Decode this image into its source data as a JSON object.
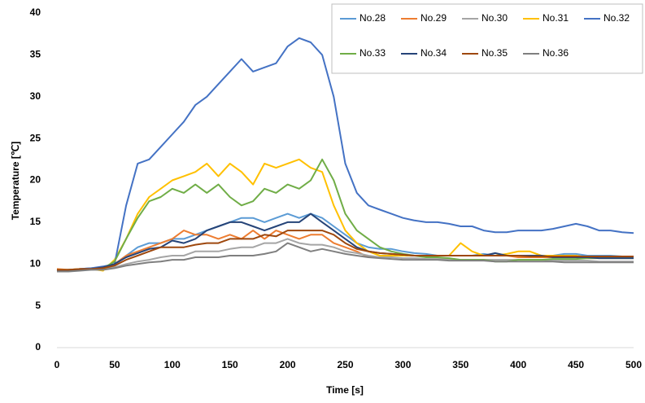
{
  "chart_data": {
    "type": "line",
    "x_label": "Time [s]",
    "y_label": "Temperature [℃]",
    "x": [
      0,
      10,
      20,
      30,
      40,
      50,
      60,
      70,
      80,
      90,
      100,
      110,
      120,
      130,
      140,
      150,
      160,
      170,
      180,
      190,
      200,
      210,
      220,
      230,
      240,
      250,
      260,
      270,
      280,
      290,
      300,
      310,
      320,
      330,
      340,
      350,
      360,
      370,
      380,
      390,
      400,
      410,
      420,
      430,
      440,
      450,
      460,
      470,
      480,
      490,
      500
    ],
    "xlim": [
      0,
      500
    ],
    "xticks": [
      0,
      50,
      100,
      150,
      200,
      250,
      300,
      350,
      400,
      450,
      500
    ],
    "ylim": [
      0,
      40
    ],
    "yticks": [
      0,
      5,
      10,
      15,
      20,
      25,
      30,
      35,
      40
    ],
    "grid": false,
    "legend": "top-right",
    "series": [
      {
        "name": "No.28",
        "color": "#5b9bd5",
        "values": [
          9.3,
          9.3,
          9.4,
          9.5,
          9.6,
          10,
          11,
          12,
          12.5,
          12.5,
          13,
          13,
          13.5,
          14,
          14.5,
          15,
          15.5,
          15.5,
          15,
          15.5,
          16,
          15.5,
          16,
          15.5,
          14.5,
          13.5,
          12.5,
          12,
          11.8,
          11.8,
          11.5,
          11.3,
          11.2,
          11,
          11,
          11,
          11,
          11.2,
          11,
          11,
          11,
          11,
          11,
          11,
          11.2,
          11.2,
          11,
          11,
          11,
          10.9,
          10.9
        ]
      },
      {
        "name": "No.29",
        "color": "#ed7d31",
        "values": [
          9.4,
          9.3,
          9.4,
          9.4,
          9.5,
          10,
          11,
          11.5,
          12,
          12.5,
          13,
          14,
          13.5,
          13.5,
          13,
          13.5,
          13,
          14,
          13,
          14,
          13.5,
          13,
          13.5,
          13.5,
          12.5,
          12,
          11.5,
          10.8,
          10.8,
          11,
          11,
          11,
          11,
          11,
          11,
          11,
          11,
          11,
          11,
          11,
          10.8,
          10.8,
          10.8,
          10.8,
          10.8,
          10.8,
          10.7,
          10.7,
          10.7,
          10.7,
          10.7
        ]
      },
      {
        "name": "No.30",
        "color": "#a5a5a5",
        "values": [
          9.2,
          9.2,
          9.3,
          9.3,
          9.4,
          9.6,
          10,
          10.3,
          10.5,
          10.8,
          11,
          11,
          11.5,
          11.5,
          11.5,
          11.8,
          12,
          12,
          12.5,
          12.5,
          13,
          12.5,
          12.3,
          12.3,
          12,
          11.5,
          11.3,
          11,
          10.8,
          10.8,
          10.7,
          10.7,
          10.6,
          10.6,
          10.6,
          10.5,
          10.5,
          10.5,
          10.5,
          10.5,
          10.5,
          10.5,
          10.5,
          10.4,
          10.4,
          10.4,
          10.4,
          10.3,
          10.3,
          10.3,
          10.3
        ]
      },
      {
        "name": "No.31",
        "color": "#ffc000",
        "values": [
          9.3,
          9.3,
          9.4,
          9.4,
          9.2,
          10.5,
          13,
          16,
          18,
          19,
          20,
          20.5,
          21,
          22,
          20.5,
          22,
          21,
          19.5,
          22,
          21.5,
          22,
          22.5,
          21.5,
          21,
          17,
          14,
          12.5,
          11.5,
          11,
          11,
          11,
          11,
          11,
          11,
          11,
          12.5,
          11.5,
          11,
          11,
          11.2,
          11.5,
          11.5,
          11,
          11,
          11,
          11,
          10.8,
          10.8,
          10.8,
          10.8,
          10.8
        ]
      },
      {
        "name": "No.32",
        "color": "#4472c4",
        "values": [
          9.3,
          9.2,
          9.4,
          9.5,
          9.7,
          10,
          17,
          22,
          22.5,
          24,
          25.5,
          27,
          29,
          30,
          31.5,
          33,
          34.5,
          33,
          33.5,
          34,
          36,
          37,
          36.5,
          35,
          30,
          22,
          18.5,
          17,
          16.5,
          16,
          15.5,
          15.2,
          15,
          15,
          14.8,
          14.5,
          14.5,
          14,
          13.8,
          13.8,
          14,
          14,
          14,
          14.2,
          14.5,
          14.8,
          14.5,
          14,
          14,
          13.8,
          13.7
        ]
      },
      {
        "name": "No.33",
        "color": "#70ad47",
        "values": [
          9.3,
          9.2,
          9.3,
          9.4,
          9.5,
          10.3,
          13,
          15.5,
          17.5,
          18,
          19,
          18.5,
          19.5,
          18.5,
          19.5,
          18,
          17,
          17.5,
          19,
          18.5,
          19.5,
          19,
          20,
          22.5,
          20,
          16,
          14,
          13,
          12,
          11.5,
          11.2,
          11,
          10.8,
          10.8,
          10.7,
          10.5,
          10.5,
          10.5,
          10.3,
          10.3,
          10.5,
          10.5,
          10.5,
          10.6,
          10.6,
          10.6,
          10.7,
          10.7,
          10.7,
          10.7,
          10.7
        ]
      },
      {
        "name": "No.34",
        "color": "#264478",
        "values": [
          9.2,
          9.3,
          9.3,
          9.4,
          9.6,
          10,
          10.8,
          11.3,
          11.8,
          12,
          12.8,
          12.5,
          13,
          14,
          14.5,
          15,
          15,
          14.5,
          14,
          14.5,
          15,
          15,
          16,
          15,
          14,
          13,
          12,
          11.5,
          11.3,
          11.2,
          11.1,
          11,
          11,
          11,
          11,
          11,
          11,
          11,
          11.3,
          11,
          11,
          11,
          11,
          10.8,
          10.8,
          10.8,
          10.8,
          10.7,
          10.7,
          10.7,
          10.7
        ]
      },
      {
        "name": "No.35",
        "color": "#9e480e",
        "values": [
          9.3,
          9.3,
          9.4,
          9.4,
          9.5,
          9.8,
          10.5,
          11,
          11.5,
          12,
          12,
          12,
          12.3,
          12.5,
          12.5,
          13,
          13,
          13,
          13.5,
          13.3,
          14,
          14,
          14,
          14,
          13.5,
          12.5,
          11.8,
          11.5,
          11.3,
          11.2,
          11.1,
          11,
          11,
          11,
          11,
          11,
          11,
          11,
          11,
          11,
          11,
          10.9,
          10.9,
          10.9,
          10.9,
          10.9,
          10.9,
          10.9,
          10.9,
          10.9,
          10.9
        ]
      },
      {
        "name": "No.36",
        "color": "#7f7f7f",
        "values": [
          9.1,
          9.1,
          9.2,
          9.3,
          9.3,
          9.5,
          9.8,
          10,
          10.2,
          10.3,
          10.5,
          10.5,
          10.8,
          10.8,
          10.8,
          11,
          11,
          11,
          11.2,
          11.5,
          12.5,
          12,
          11.5,
          11.8,
          11.5,
          11.2,
          11,
          10.8,
          10.7,
          10.6,
          10.5,
          10.5,
          10.5,
          10.5,
          10.4,
          10.4,
          10.4,
          10.4,
          10.3,
          10.3,
          10.3,
          10.3,
          10.3,
          10.3,
          10.2,
          10.2,
          10.2,
          10.2,
          10.2,
          10.2,
          10.2
        ]
      }
    ]
  }
}
